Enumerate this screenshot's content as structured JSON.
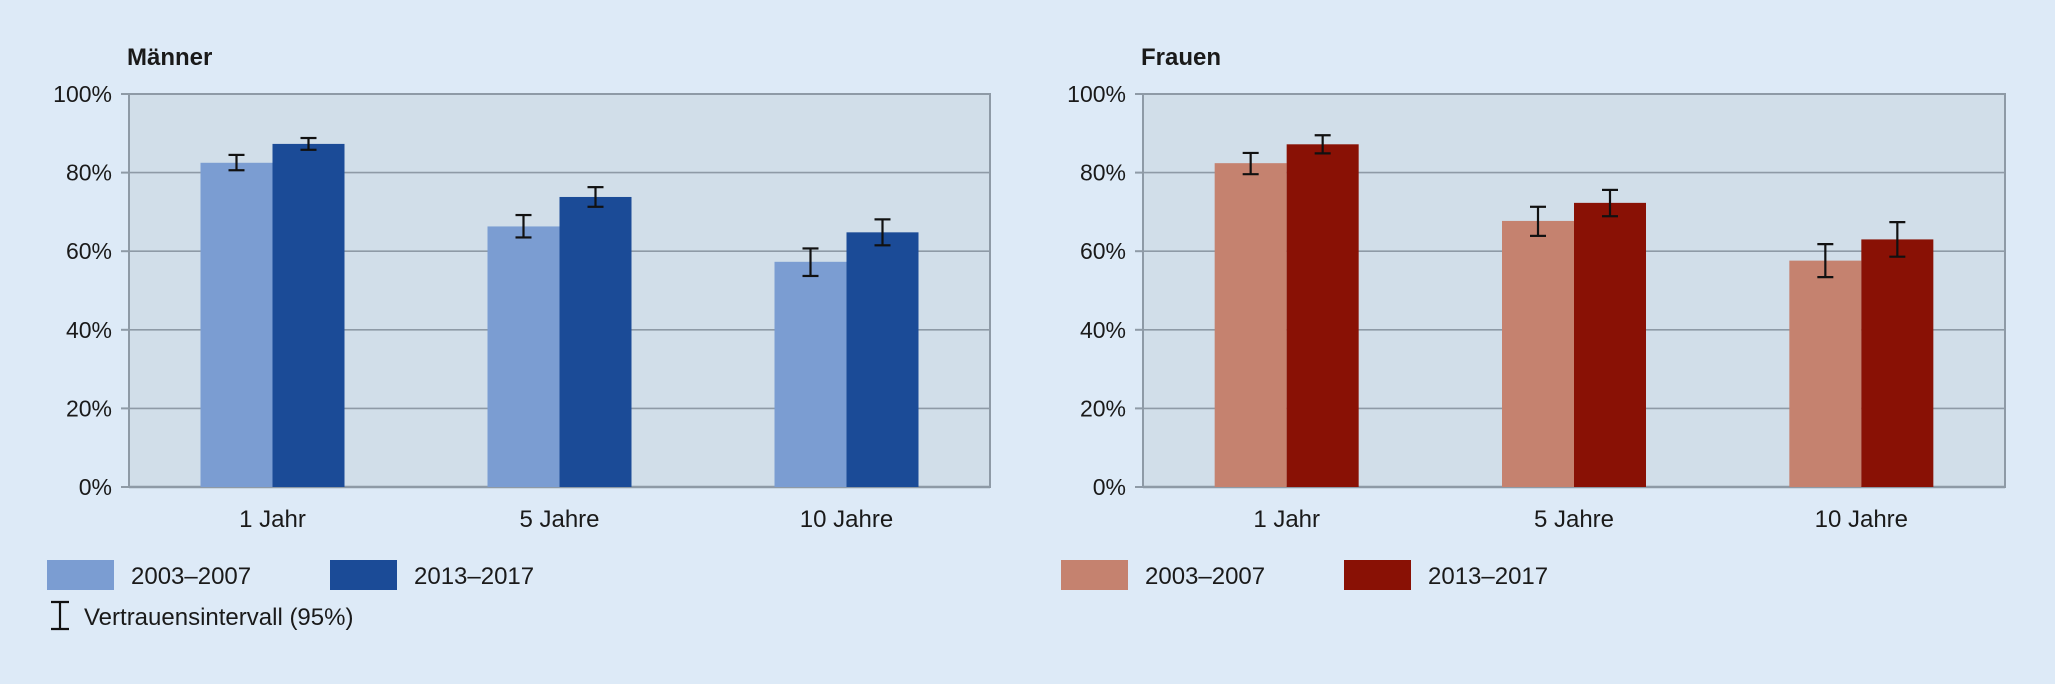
{
  "chart_data": [
    {
      "type": "bar",
      "title": "Männer",
      "categories": [
        "1 Jahr",
        "5 Jahre",
        "10 Jahre"
      ],
      "series": [
        {
          "name": "2003–2007",
          "color": "#7b9dd2",
          "values": [
            82.5,
            66.3,
            57.3
          ],
          "ci_low": [
            80.6,
            63.5,
            53.7
          ],
          "ci_high": [
            84.5,
            69.2,
            60.7
          ]
        },
        {
          "name": "2013–2017",
          "color": "#1b4b97",
          "values": [
            87.3,
            73.8,
            64.8
          ],
          "ci_low": [
            85.8,
            71.3,
            61.5
          ],
          "ci_high": [
            88.8,
            76.3,
            68.1
          ]
        }
      ],
      "yticks": [
        "0%",
        "20%",
        "40%",
        "60%",
        "80%",
        "100%"
      ],
      "ylim": [
        0,
        100
      ],
      "grid": true
    },
    {
      "type": "bar",
      "title": "Frauen",
      "categories": [
        "1 Jahr",
        "5 Jahre",
        "10 Jahre"
      ],
      "series": [
        {
          "name": "2003–2007",
          "color": "#c5826f",
          "values": [
            82.4,
            67.7,
            57.6
          ],
          "ci_low": [
            79.6,
            63.9,
            53.4
          ],
          "ci_high": [
            85.0,
            71.3,
            61.8
          ]
        },
        {
          "name": "2013–2017",
          "color": "#891105",
          "values": [
            87.2,
            72.3,
            63.0
          ],
          "ci_low": [
            84.9,
            68.9,
            58.6
          ],
          "ci_high": [
            89.5,
            75.6,
            67.4
          ]
        }
      ],
      "yticks": [
        "0%",
        "20%",
        "40%",
        "60%",
        "80%",
        "100%"
      ],
      "ylim": [
        0,
        100
      ],
      "grid": true
    }
  ],
  "legend": {
    "ci_label": "Vertrauensintervall (95%)"
  },
  "colors": {
    "background": "#ddeaf7",
    "plot_area": "#d1dee9",
    "gridline": "#8e9aa6",
    "axis": "#8e9aa6",
    "text": "#1a1a1a"
  }
}
